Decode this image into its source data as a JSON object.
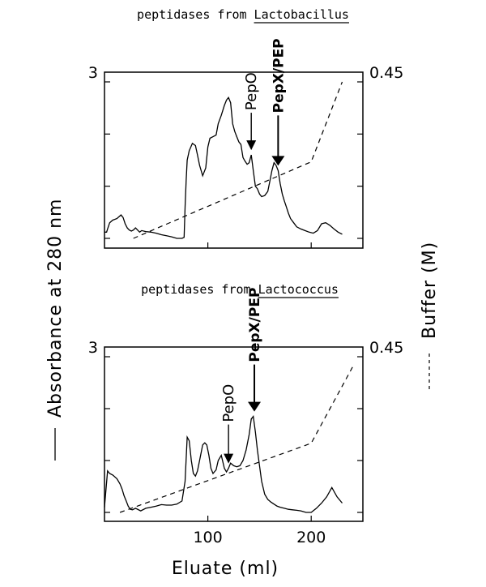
{
  "figure": {
    "xlabel": "Eluate (ml)",
    "ylabel_left": "Absorbance at 280 nm",
    "ylabel_right": "Buffer (M)"
  },
  "chart_data": [
    {
      "type": "line",
      "title_prefix": "peptidases from ",
      "title_organism": "Lactobacillus",
      "xlim": [
        0,
        250
      ],
      "ylim": [
        0,
        3
      ],
      "ylim_right": [
        0,
        0.45
      ],
      "ytick_top_left": "3",
      "ytick_top_right": "0.45",
      "series": [
        {
          "name": "Absorbance at 280 nm",
          "style": "solid",
          "x": [
            0,
            2,
            3,
            5,
            8,
            12,
            16,
            18,
            20,
            22,
            24,
            26,
            28,
            30,
            32,
            34,
            36,
            40,
            45,
            50,
            55,
            60,
            65,
            70,
            72,
            75,
            77,
            78,
            79,
            80,
            82,
            85,
            88,
            90,
            92,
            95,
            98,
            100,
            102,
            105,
            108,
            110,
            113,
            116,
            118,
            120,
            122,
            124,
            126,
            128,
            130,
            132,
            134,
            136,
            138,
            140,
            142,
            144,
            146,
            148,
            150,
            152,
            155,
            158,
            160,
            162,
            164,
            166,
            168,
            170,
            172,
            174,
            176,
            178,
            180,
            183,
            186,
            190,
            194,
            198,
            202,
            206,
            210,
            214,
            218,
            222,
            226,
            230
          ],
          "y": [
            0.12,
            0.12,
            0.18,
            0.3,
            0.35,
            0.38,
            0.45,
            0.4,
            0.28,
            0.2,
            0.16,
            0.14,
            0.16,
            0.2,
            0.16,
            0.12,
            0.15,
            0.13,
            0.12,
            0.1,
            0.07,
            0.05,
            0.03,
            0.0,
            0.0,
            0.0,
            0.02,
            0.6,
            1.1,
            1.5,
            1.68,
            1.82,
            1.78,
            1.6,
            1.4,
            1.2,
            1.35,
            1.75,
            1.92,
            1.95,
            1.98,
            2.2,
            2.36,
            2.55,
            2.65,
            2.7,
            2.6,
            2.2,
            2.05,
            1.95,
            1.85,
            1.8,
            1.55,
            1.48,
            1.42,
            1.45,
            1.6,
            1.3,
            1.0,
            0.95,
            0.85,
            0.8,
            0.82,
            0.9,
            1.1,
            1.3,
            1.45,
            1.4,
            1.3,
            1.05,
            0.85,
            0.72,
            0.6,
            0.48,
            0.38,
            0.3,
            0.22,
            0.18,
            0.15,
            0.12,
            0.1,
            0.15,
            0.28,
            0.3,
            0.25,
            0.18,
            0.12,
            0.08
          ]
        },
        {
          "name": "Buffer (M)",
          "style": "dashed",
          "axis": "right",
          "x": [
            28,
            200,
            230
          ],
          "y": [
            0.0,
            0.22,
            0.45
          ]
        }
      ],
      "annotations": [
        {
          "text": "PepO",
          "x": 142,
          "weight": "normal"
        },
        {
          "text": "PepX/PEP",
          "x": 168,
          "weight": "bold"
        }
      ]
    },
    {
      "type": "line",
      "title_prefix": "peptidases from ",
      "title_organism": "Lactococcus",
      "xlim": [
        0,
        250
      ],
      "ylim": [
        0,
        3
      ],
      "ylim_right": [
        0,
        0.45
      ],
      "ytick_top_left": "3",
      "ytick_top_right": "0.45",
      "xticks": [
        100,
        200
      ],
      "xticklabels": [
        "100",
        "200"
      ],
      "series": [
        {
          "name": "Absorbance at 280 nm",
          "style": "solid",
          "x": [
            0,
            3,
            5,
            8,
            12,
            15,
            17,
            19,
            21,
            23,
            25,
            27,
            30,
            35,
            40,
            45,
            50,
            55,
            60,
            65,
            70,
            75,
            78,
            80,
            82,
            84,
            86,
            88,
            90,
            92,
            95,
            97,
            99,
            101,
            103,
            105,
            108,
            110,
            113,
            116,
            118,
            120,
            122,
            125,
            128,
            131,
            134,
            137,
            140,
            142,
            144,
            146,
            148,
            150,
            152,
            155,
            158,
            161,
            164,
            167,
            170,
            174,
            178,
            182,
            186,
            190,
            195,
            200,
            205,
            210,
            215,
            220,
            225,
            230
          ],
          "y": [
            0.1,
            0.8,
            0.75,
            0.72,
            0.65,
            0.55,
            0.45,
            0.32,
            0.22,
            0.12,
            0.06,
            0.05,
            0.08,
            0.03,
            0.08,
            0.1,
            0.12,
            0.15,
            0.14,
            0.14,
            0.16,
            0.22,
            0.6,
            1.45,
            1.38,
            1.0,
            0.75,
            0.7,
            0.8,
            1.0,
            1.3,
            1.34,
            1.3,
            1.1,
            0.85,
            0.75,
            0.82,
            1.0,
            1.1,
            0.85,
            0.78,
            0.85,
            0.95,
            0.9,
            0.88,
            0.9,
            1.0,
            1.2,
            1.5,
            1.8,
            1.85,
            1.55,
            1.2,
            0.9,
            0.6,
            0.35,
            0.25,
            0.2,
            0.16,
            0.12,
            0.1,
            0.08,
            0.06,
            0.05,
            0.04,
            0.03,
            0.0,
            0.0,
            0.08,
            0.18,
            0.3,
            0.48,
            0.3,
            0.18
          ]
        },
        {
          "name": "Buffer (M)",
          "style": "dashed",
          "axis": "right",
          "x": [
            15,
            200,
            240
          ],
          "y": [
            0.0,
            0.2,
            0.42
          ]
        }
      ],
      "annotations": [
        {
          "text": "PepO",
          "x": 120,
          "weight": "normal"
        },
        {
          "text": "PepX/PEP",
          "x": 145,
          "weight": "bold"
        }
      ]
    }
  ]
}
